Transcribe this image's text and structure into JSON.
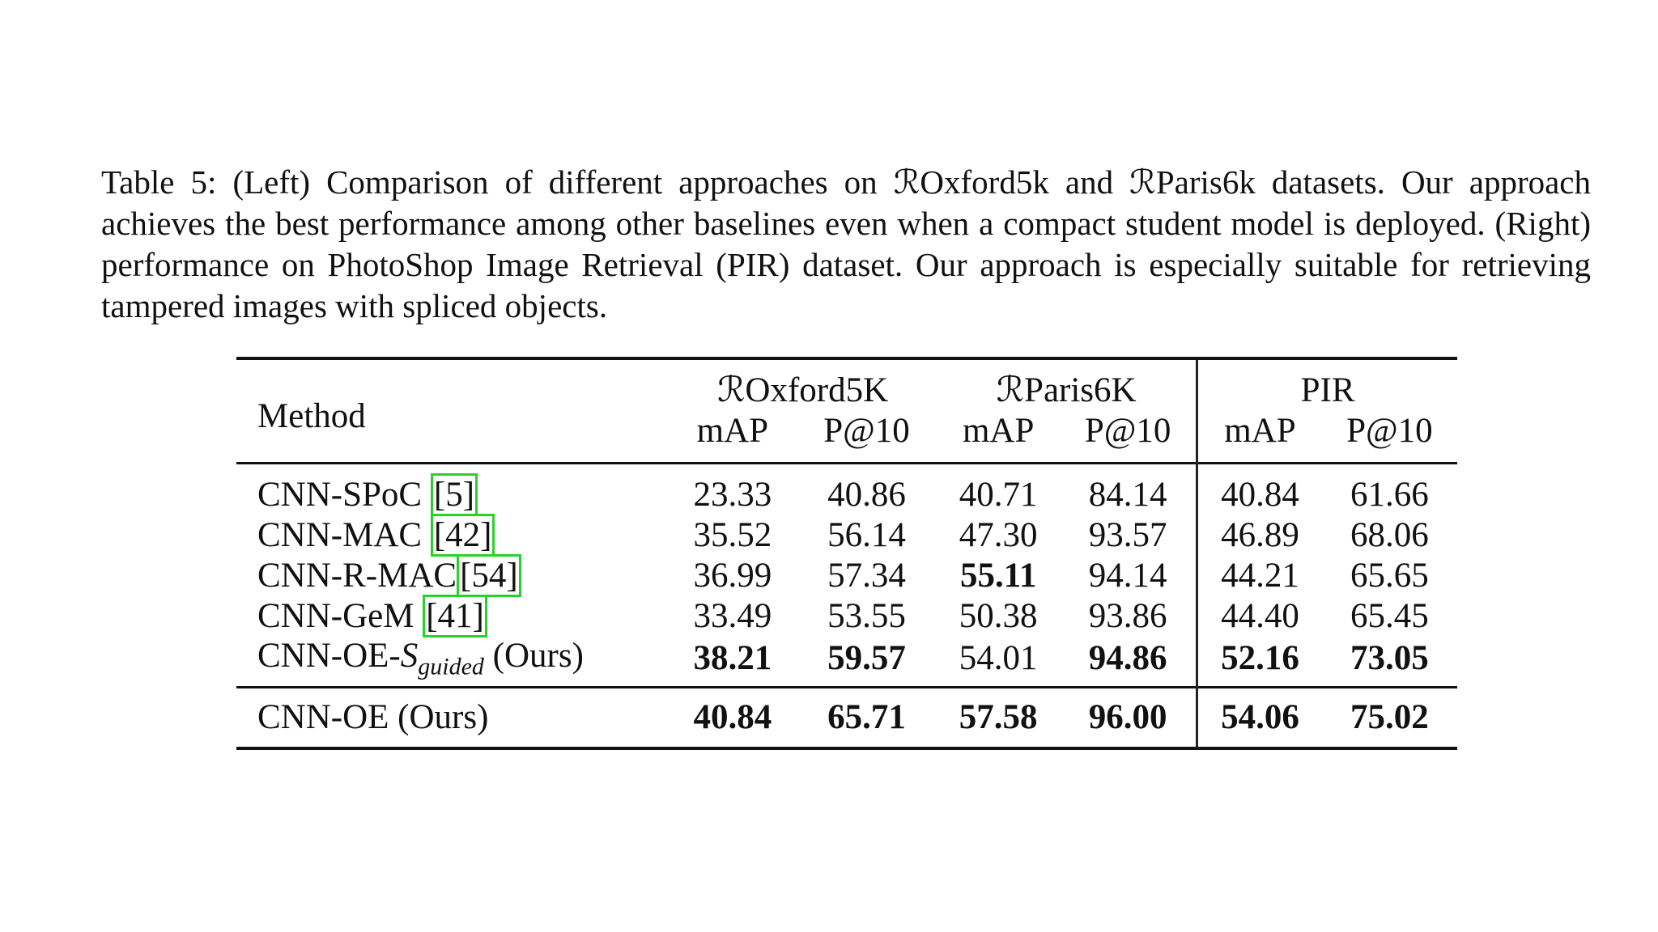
{
  "caption": "Table 5: (Left) Comparison of different approaches on ℛOxford5k and ℛParis6k datasets. Our approach achieves the best performance among other baselines even when a compact student model is deployed. (Right) performance on PhotoShop Image Retrieval (PIR) dataset. Our approach is especially suitable for retrieving tampered images with spliced objects.",
  "table": {
    "method_header": "Method",
    "groups": [
      "ℛOxford5K",
      "ℛParis6K",
      "PIR"
    ],
    "subheaders": [
      "mAP",
      "P@10",
      "mAP",
      "P@10",
      "mAP",
      "P@10"
    ],
    "rows": [
      {
        "method": {
          "name": "CNN-SPoC ",
          "ref": "[5]"
        },
        "cells": [
          {
            "text": "23.33",
            "bold": false
          },
          {
            "text": "40.86",
            "bold": false
          },
          {
            "text": "40.71",
            "bold": false
          },
          {
            "text": "84.14",
            "bold": false
          },
          {
            "text": "40.84",
            "bold": false
          },
          {
            "text": "61.66",
            "bold": false
          }
        ]
      },
      {
        "method": {
          "name": "CNN-MAC ",
          "ref": "[42]"
        },
        "cells": [
          {
            "text": "35.52",
            "bold": false
          },
          {
            "text": "56.14",
            "bold": false
          },
          {
            "text": "47.30",
            "bold": false
          },
          {
            "text": "93.57",
            "bold": false
          },
          {
            "text": "46.89",
            "bold": false
          },
          {
            "text": "68.06",
            "bold": false
          }
        ]
      },
      {
        "method": {
          "name": "CNN-R-MAC",
          "ref": "[54]"
        },
        "cells": [
          {
            "text": "36.99",
            "bold": false
          },
          {
            "text": "57.34",
            "bold": false
          },
          {
            "text": "55.11",
            "bold": true
          },
          {
            "text": "94.14",
            "bold": false
          },
          {
            "text": "44.21",
            "bold": false
          },
          {
            "text": "65.65",
            "bold": false
          }
        ]
      },
      {
        "method": {
          "name": "CNN-GeM ",
          "ref": "[41]"
        },
        "cells": [
          {
            "text": "33.49",
            "bold": false
          },
          {
            "text": "53.55",
            "bold": false
          },
          {
            "text": "50.38",
            "bold": false
          },
          {
            "text": "93.86",
            "bold": false
          },
          {
            "text": "44.40",
            "bold": false
          },
          {
            "text": "65.45",
            "bold": false
          }
        ]
      },
      {
        "method": {
          "name": "CNN-OE-",
          "symbol": "S",
          "subscript": "guided",
          "suffix": " (Ours)"
        },
        "cells": [
          {
            "text": "38.21",
            "bold": true
          },
          {
            "text": "59.57",
            "bold": true
          },
          {
            "text": "54.01",
            "bold": false
          },
          {
            "text": "94.86",
            "bold": true
          },
          {
            "text": "52.16",
            "bold": true
          },
          {
            "text": "73.05",
            "bold": true
          }
        ]
      },
      {
        "method": {
          "name": "CNN-OE (Ours)"
        },
        "cells": [
          {
            "text": "40.84",
            "bold": true
          },
          {
            "text": "65.71",
            "bold": true
          },
          {
            "text": "57.58",
            "bold": true
          },
          {
            "text": "96.00",
            "bold": true
          },
          {
            "text": "54.06",
            "bold": true
          },
          {
            "text": "75.02",
            "bold": true
          }
        ]
      }
    ]
  }
}
